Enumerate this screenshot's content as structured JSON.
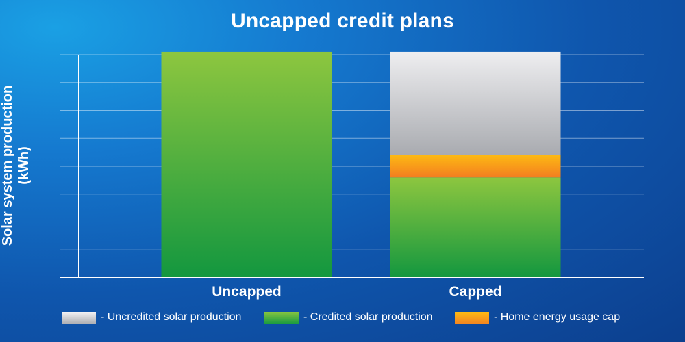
{
  "chart_data": {
    "type": "bar",
    "stacked": true,
    "title": "Uncapped credit plans",
    "ylabel": "Solar system production (kWh)",
    "ylabel_lines": [
      "Solar system production",
      "(kWh)"
    ],
    "xlabel": "",
    "y_tick_labels": "none",
    "ylim": [
      0,
      8
    ],
    "grid": true,
    "categories": [
      "Uncapped",
      "Capped"
    ],
    "series": [
      {
        "name": "Credited solar production",
        "color": "#3fb24a",
        "values": [
          8.1,
          3.6
        ]
      },
      {
        "name": "Home energy usage cap",
        "color": "#f7a01c",
        "values": [
          0,
          0.8
        ]
      },
      {
        "name": "Uncredited solar production",
        "color": "#c8c9cd",
        "values": [
          0,
          3.7
        ]
      }
    ],
    "legend": {
      "position": "bottom",
      "entries": [
        {
          "label": "- Uncredited solar production",
          "color": "#c8c9cd"
        },
        {
          "label": "- Credited solar production",
          "color": "#3fb24a"
        },
        {
          "label": "- Home energy usage cap",
          "color": "#f7a01c"
        }
      ]
    }
  }
}
